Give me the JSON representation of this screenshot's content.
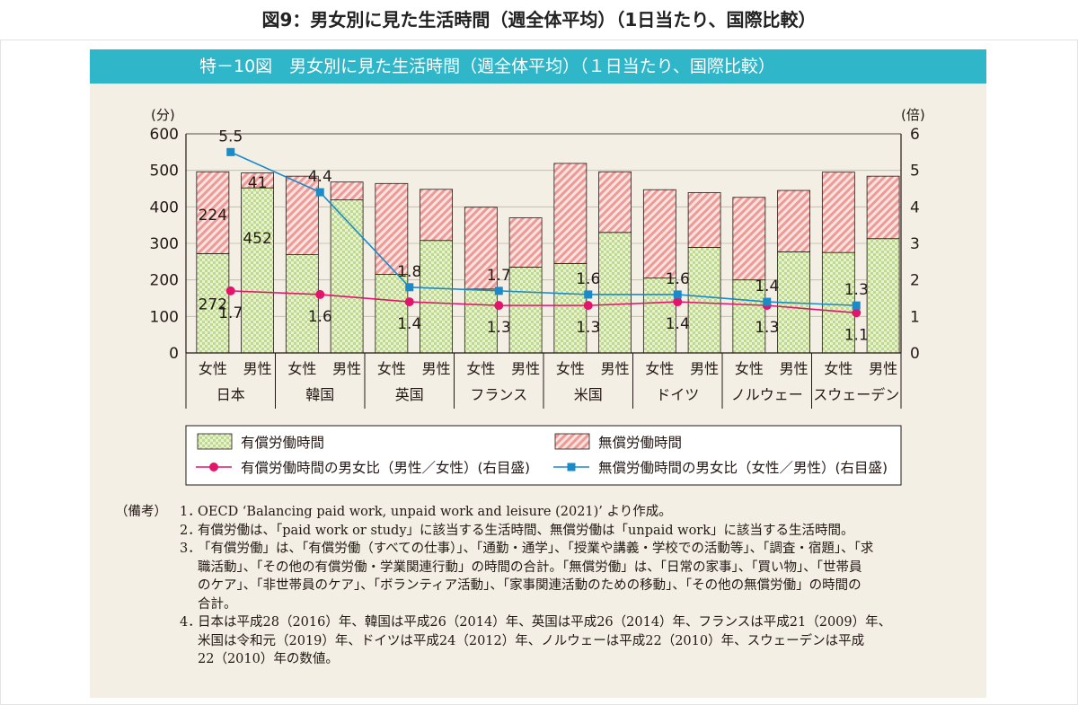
{
  "page_title": "図9：男女別に見た生活時間（週全体平均）（1日当たり、国際比較）",
  "figure_title": "特－10図　男女別に見た生活時間（週全体平均）（１日当たり、国際比較）",
  "chart_data": {
    "type": "bar",
    "stacked": true,
    "left_axis": {
      "unit_label": "(分)",
      "ylim": [
        0,
        600
      ],
      "ticks": [
        "0",
        "100",
        "200",
        "300",
        "400",
        "500",
        "600"
      ]
    },
    "right_axis": {
      "unit_label": "(倍)",
      "ylim": [
        0,
        6
      ],
      "ticks": [
        "0",
        "1",
        "2",
        "3",
        "4",
        "5",
        "6"
      ]
    },
    "countries": [
      "日本",
      "韓国",
      "英国",
      "フランス",
      "米国",
      "ドイツ",
      "ノルウェー",
      "スウェーデン"
    ],
    "sex_labels": [
      "女性",
      "男性"
    ],
    "paid": {
      "legend": "有償労働時間",
      "color": "#cfe4a8",
      "female": [
        272,
        269,
        215,
        175,
        245,
        205,
        200,
        275
      ],
      "male": [
        452,
        419,
        308,
        235,
        330,
        289,
        277,
        313
      ],
      "shown_labels": {
        "female_japan": "272",
        "male_japan": "452"
      }
    },
    "unpaid": {
      "legend": "無償労働時間",
      "color": "#f5b8b5",
      "female": [
        224,
        215,
        249,
        224,
        274,
        242,
        226,
        220
      ],
      "male": [
        41,
        49,
        140,
        135,
        166,
        150,
        168,
        171
      ],
      "shown_labels": {
        "female_japan": "224",
        "male_japan": "41"
      }
    },
    "paid_ratio": {
      "legend": "有償労働時間の男女比（男性／女性）(右目盛)",
      "color": "#e2156b",
      "values": [
        1.7,
        1.6,
        1.4,
        1.3,
        1.3,
        1.4,
        1.3,
        1.1
      ],
      "labels": [
        "1.7",
        "1.6",
        "1.4",
        "1.3",
        "1.3",
        "1.4",
        "1.3",
        "1.1"
      ]
    },
    "unpaid_ratio": {
      "legend": "無償労働時間の男女比（女性／男性）(右目盛)",
      "color": "#1a8ac9",
      "values": [
        5.5,
        4.4,
        1.8,
        1.7,
        1.6,
        1.6,
        1.4,
        1.3
      ],
      "labels": [
        "5.5",
        "4.4",
        "1.8",
        "1.7",
        "1.6",
        "1.6",
        "1.4",
        "1.3"
      ]
    }
  },
  "notes": {
    "head": "（備考）",
    "items": [
      {
        "num": "1．",
        "lines": [
          "OECD ‘Balancing paid work, unpaid work and leisure (2021)’ より作成。"
        ]
      },
      {
        "num": "2．",
        "lines": [
          "有償労働は、「paid work or study」に該当する生活時間、無償労働は「unpaid work」に該当する生活時間。"
        ]
      },
      {
        "num": "3．",
        "lines": [
          "「有償労働」は、「有償労働（すべての仕事）」、「通勤・通学」、「授業や講義・学校での活動等」、「調査・宿題」、「求",
          "職活動」、「その他の有償労働・学業関連行動」の時間の合計。「無償労働」は、「日常の家事」、「買い物」、「世帯員",
          "のケア」、「非世帯員のケア」、「ボランティア活動」、「家事関連活動のための移動」、「その他の無償労働」の時間の",
          "合計。"
        ]
      },
      {
        "num": "4．",
        "lines": [
          "日本は平成28（2016）年、韓国は平成26（2014）年、英国は平成26（2014）年、フランスは平成21（2009）年、",
          "米国は令和元（2019）年、ドイツは平成24（2012）年、ノルウェーは平成22（2010）年、スウェーデンは平成",
          "22（2010）年の数値。"
        ]
      }
    ]
  }
}
